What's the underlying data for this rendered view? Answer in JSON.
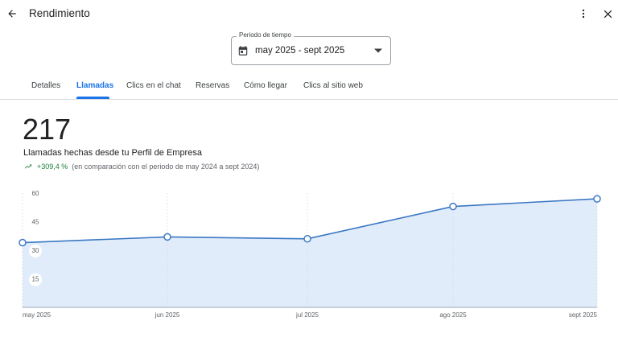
{
  "header": {
    "title": "Rendimiento",
    "back_icon": "arrow-back-icon",
    "more_icon": "more-vert-icon",
    "close_icon": "close-icon"
  },
  "period": {
    "label": "Periodo de tiempo",
    "value": "may 2025 - sept 2025",
    "icon": "calendar-icon"
  },
  "tabs": [
    {
      "label": "Detalles"
    },
    {
      "label": "Llamadas",
      "active": true
    },
    {
      "label": "Clics en el chat"
    },
    {
      "label": "Reservas"
    },
    {
      "label": "Cómo llegar"
    },
    {
      "label": "Clics al sitio web"
    }
  ],
  "summary": {
    "total": "217",
    "description": "Llamadas hechas desde tu Perfil de Empresa",
    "change": "+309,4 %",
    "comparison": "(en comparación con el periodo de may 2024 a sept 2024)"
  },
  "colors": {
    "accent": "#1a73e8",
    "line": "#3b78c3",
    "fill": "#e1ecfb",
    "positive": "#188038"
  },
  "chart_data": {
    "type": "area",
    "categories": [
      "may 2025",
      "jun 2025",
      "jul 2025",
      "ago 2025",
      "sept 2025"
    ],
    "values": [
      34,
      37,
      36,
      53,
      57
    ],
    "yticks": [
      15,
      30,
      45,
      60
    ],
    "ylim": [
      0,
      60
    ],
    "grid": "vertical dashed"
  }
}
